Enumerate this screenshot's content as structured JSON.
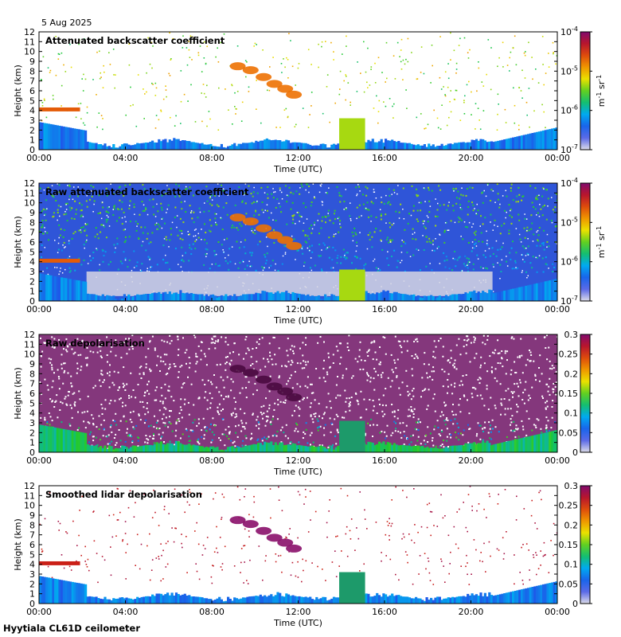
{
  "date": "5 Aug 2025",
  "footer": "Hyytiala CL61D ceilometer",
  "colors": {
    "clear": "#d6d6e3",
    "low_blue": "#2a3fe0",
    "green": "#22c832",
    "yellow": "#f0e000",
    "orange": "#f07800",
    "red": "#c81e1e",
    "purple": "#8a0f6a"
  },
  "chart_data": [
    {
      "type": "heatmap",
      "title": "Attenuated backscatter coefficient",
      "xlabel": "Time (UTC)",
      "ylabel": "Height (km)",
      "x_ticks": [
        "00:00",
        "04:00",
        "08:00",
        "12:00",
        "16:00",
        "20:00",
        "00:00"
      ],
      "x_hours": [
        0,
        4,
        8,
        12,
        16,
        20,
        24
      ],
      "y_ticks": [
        0,
        1,
        2,
        3,
        4,
        5,
        6,
        7,
        8,
        9,
        10,
        11,
        12
      ],
      "ylim": [
        0,
        12
      ],
      "xlim_hours": [
        0,
        24
      ],
      "colorbar": {
        "scale": "log",
        "ticks": [
          "10^-7",
          "10^-6",
          "10^-5",
          "10^-4"
        ],
        "unit": "m^-1 sr^-1"
      },
      "pattern": "backscatter"
    },
    {
      "type": "heatmap",
      "title": "Raw attenuated backscatter coefficient",
      "xlabel": "Time (UTC)",
      "ylabel": "Height (km)",
      "x_ticks": [
        "00:00",
        "04:00",
        "08:00",
        "12:00",
        "16:00",
        "20:00",
        "00:00"
      ],
      "x_hours": [
        0,
        4,
        8,
        12,
        16,
        20,
        24
      ],
      "y_ticks": [
        0,
        1,
        2,
        3,
        4,
        5,
        6,
        7,
        8,
        9,
        10,
        11,
        12
      ],
      "ylim": [
        0,
        12
      ],
      "xlim_hours": [
        0,
        24
      ],
      "colorbar": {
        "scale": "log",
        "ticks": [
          "10^-7",
          "10^-6",
          "10^-5",
          "10^-4"
        ],
        "unit": "m^-1 sr^-1"
      },
      "pattern": "raw_backscatter"
    },
    {
      "type": "heatmap",
      "title": "Raw depolarisation",
      "xlabel": "Time (UTC)",
      "ylabel": "Height (km)",
      "x_ticks": [
        "00:00",
        "04:00",
        "08:00",
        "12:00",
        "16:00",
        "20:00",
        "00:00"
      ],
      "x_hours": [
        0,
        4,
        8,
        12,
        16,
        20,
        24
      ],
      "y_ticks": [
        0,
        1,
        2,
        3,
        4,
        5,
        6,
        7,
        8,
        9,
        10,
        11,
        12
      ],
      "ylim": [
        0,
        12
      ],
      "xlim_hours": [
        0,
        24
      ],
      "colorbar": {
        "scale": "linear",
        "ticks": [
          "0",
          "0.05",
          "0.1",
          "0.15",
          "0.2",
          "0.25",
          "0.3"
        ],
        "range": [
          0,
          0.3
        ]
      },
      "pattern": "raw_depol"
    },
    {
      "type": "heatmap",
      "title": "Smoothed lidar depolarisation",
      "xlabel": "Time (UTC)",
      "ylabel": "Height (km)",
      "x_ticks": [
        "00:00",
        "04:00",
        "08:00",
        "12:00",
        "16:00",
        "20:00",
        "00:00"
      ],
      "x_hours": [
        0,
        4,
        8,
        12,
        16,
        20,
        24
      ],
      "y_ticks": [
        0,
        1,
        2,
        3,
        4,
        5,
        6,
        7,
        8,
        9,
        10,
        11,
        12
      ],
      "ylim": [
        0,
        12
      ],
      "xlim_hours": [
        0,
        24
      ],
      "colorbar": {
        "scale": "linear",
        "ticks": [
          "0",
          "0.05",
          "0.1",
          "0.15",
          "0.2",
          "0.25",
          "0.3"
        ],
        "range": [
          0,
          0.3
        ]
      },
      "pattern": "smooth_depol"
    }
  ]
}
